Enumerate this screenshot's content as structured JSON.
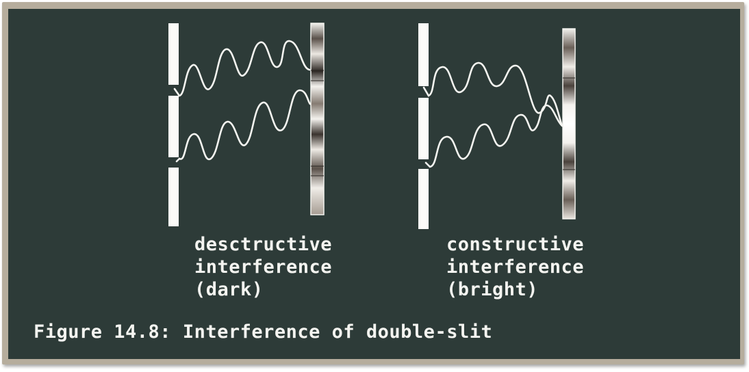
{
  "diagram": {
    "left_panel": {
      "label_lines": [
        "desctructive",
        "interference",
        "(dark)"
      ]
    },
    "right_panel": {
      "label_lines": [
        "constructive",
        "interference",
        "(bright)"
      ]
    }
  },
  "caption": "Figure 14.8: Interference of double-slit",
  "colors": {
    "board": "#2d3b38",
    "frame": "#b6ad9d",
    "chalk": "#f4f4f0"
  }
}
